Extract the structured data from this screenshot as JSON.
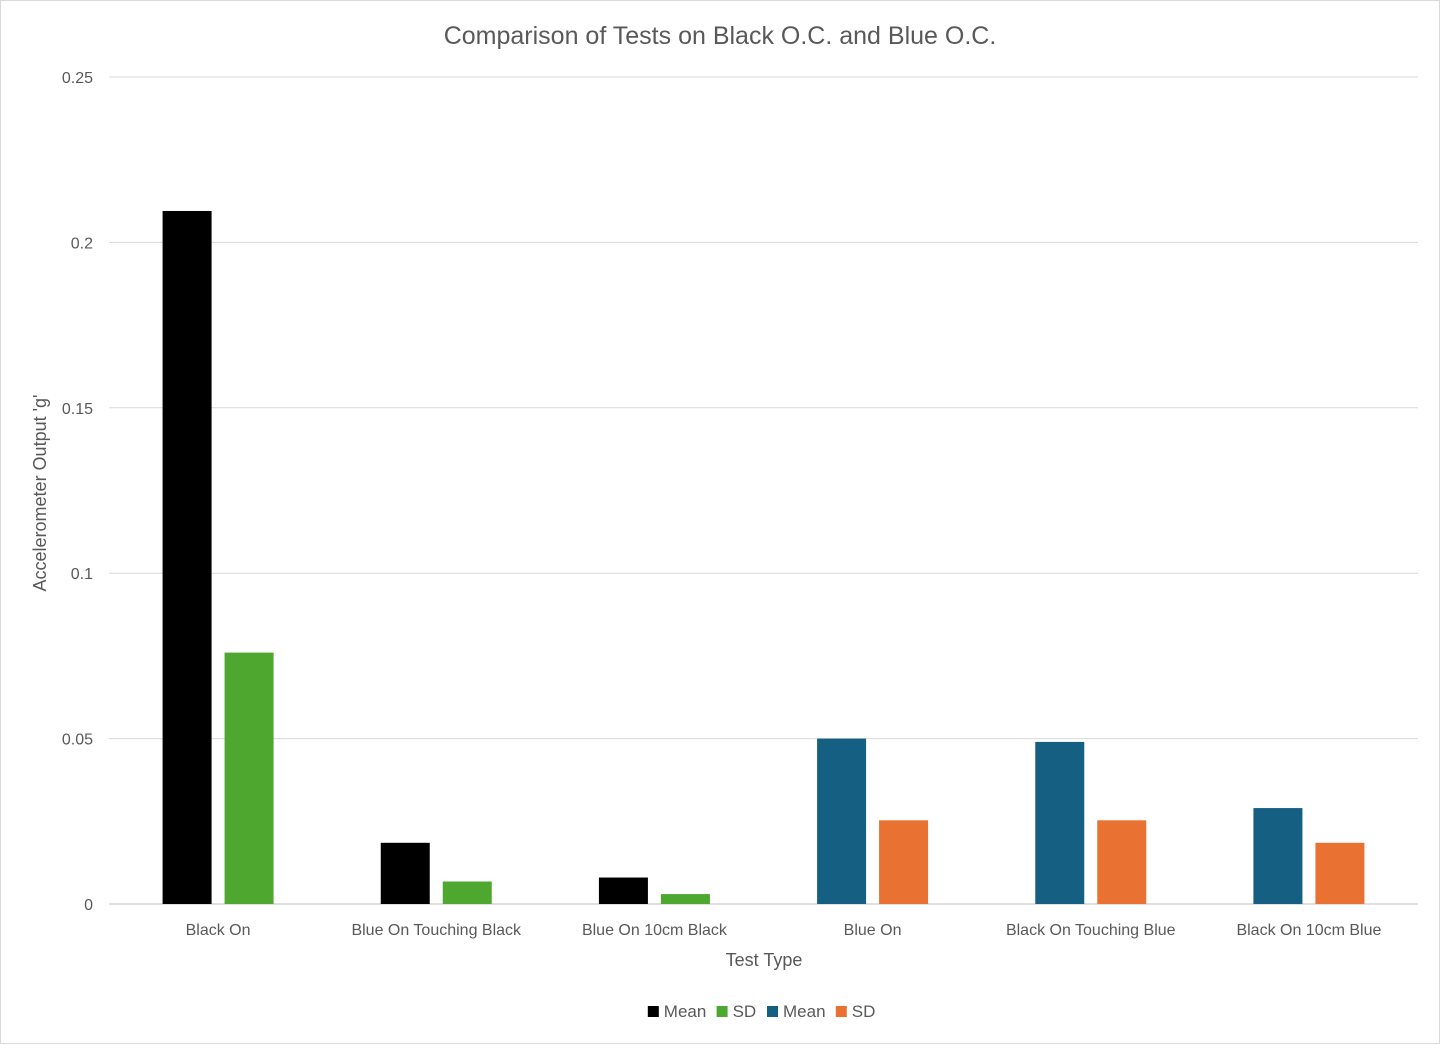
{
  "chart_data": {
    "type": "bar",
    "title": "Comparison of Tests on Black O.C. and Blue O.C.",
    "xlabel": "Test Type",
    "ylabel": "Accelerometer Output 'g'",
    "ylim": [
      0,
      0.25
    ],
    "yticks": [
      "0",
      "0.05",
      "0.1",
      "0.15",
      "0.2",
      "0.25"
    ],
    "grid": true,
    "legend_position": "bottom",
    "categories": [
      "Black On",
      "Blue On Touching Black",
      "Blue On 10cm Black",
      "Blue On",
      "Black On Touching Blue",
      "Black On 10cm Blue"
    ],
    "series": [
      {
        "name": "Mean",
        "color": "#000000",
        "values": [
          0.2095,
          0.0185,
          0.008,
          null,
          null,
          null
        ]
      },
      {
        "name": "SD",
        "color": "#4ea72e",
        "values": [
          0.076,
          0.0068,
          0.003,
          null,
          null,
          null
        ]
      },
      {
        "name": "Mean",
        "color": "#156082",
        "values": [
          null,
          null,
          null,
          0.05,
          0.049,
          0.029
        ]
      },
      {
        "name": "SD",
        "color": "#e97132",
        "values": [
          null,
          null,
          null,
          0.0253,
          0.0253,
          0.0185
        ]
      }
    ]
  }
}
